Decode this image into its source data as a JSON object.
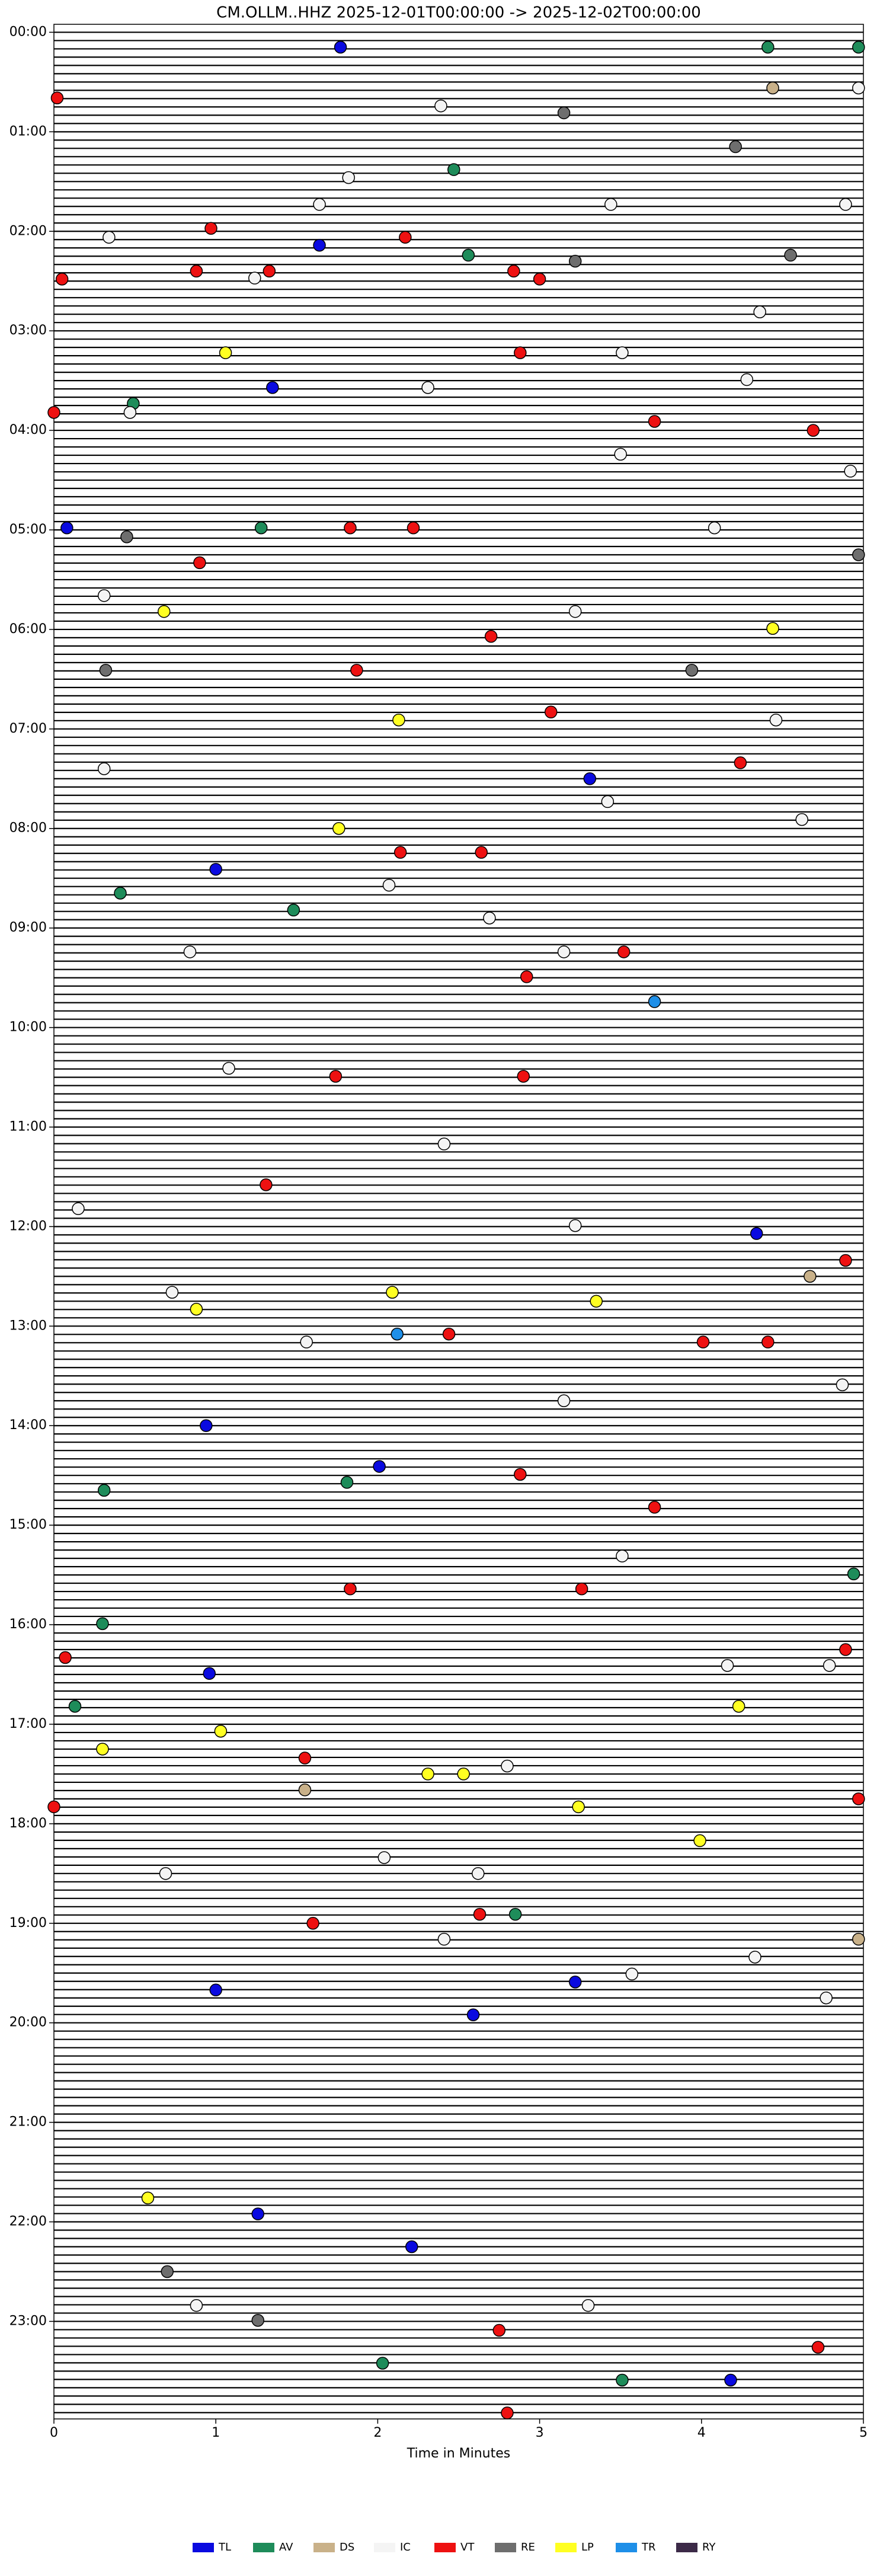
{
  "chart_data": {
    "type": "helicorder",
    "title": "CM.OLLM..HHZ  2025-12-01T00:00:00 -> 2025-12-02T00:00:00",
    "x_label": "Time in Minutes",
    "xlim": [
      0,
      5
    ],
    "xticks": [
      0,
      1,
      2,
      3,
      4,
      5
    ],
    "ylim": [
      -0.08,
      23.98
    ],
    "yaxis_inverted": true,
    "yticks": [
      {
        "value": 0,
        "label": "00:00"
      },
      {
        "value": 1,
        "label": "01:00"
      },
      {
        "value": 2,
        "label": "02:00"
      },
      {
        "value": 3,
        "label": "03:00"
      },
      {
        "value": 4,
        "label": "04:00"
      },
      {
        "value": 5,
        "label": "05:00"
      },
      {
        "value": 6,
        "label": "06:00"
      },
      {
        "value": 7,
        "label": "07:00"
      },
      {
        "value": 8,
        "label": "08:00"
      },
      {
        "value": 9,
        "label": "09:00"
      },
      {
        "value": 10,
        "label": "10:00"
      },
      {
        "value": 11,
        "label": "11:00"
      },
      {
        "value": 12,
        "label": "12:00"
      },
      {
        "value": 13,
        "label": "13:00"
      },
      {
        "value": 14,
        "label": "14:00"
      },
      {
        "value": 15,
        "label": "15:00"
      },
      {
        "value": 16,
        "label": "16:00"
      },
      {
        "value": 17,
        "label": "17:00"
      },
      {
        "value": 18,
        "label": "18:00"
      },
      {
        "value": 19,
        "label": "19:00"
      },
      {
        "value": 20,
        "label": "20:00"
      },
      {
        "value": 21,
        "label": "21:00"
      },
      {
        "value": 22,
        "label": "22:00"
      },
      {
        "value": 23,
        "label": "23:00"
      }
    ],
    "legend": "bottom",
    "series": [
      {
        "name": "TL",
        "color": "#0a0ae0",
        "x": [
          1.77,
          1.64,
          1.35,
          0.08,
          3.31,
          1.0,
          0.94,
          2.01,
          0.96,
          1.0,
          3.22,
          2.59,
          1.26,
          2.21,
          4.18,
          4.34
        ],
        "y": [
          0.15,
          2.14,
          3.57,
          4.98,
          7.5,
          8.41,
          14.0,
          14.41,
          16.49,
          19.67,
          19.59,
          19.92,
          21.92,
          22.25,
          23.59,
          12.07
        ]
      },
      {
        "name": "AV",
        "color": "#1e8c5a",
        "x": [
          4.41,
          4.97,
          2.47,
          2.56,
          0.49,
          1.28,
          0.41,
          1.48,
          0.31,
          1.81,
          4.94,
          0.3,
          0.13,
          2.85,
          2.03,
          3.51
        ],
        "y": [
          0.15,
          0.15,
          1.38,
          2.24,
          3.73,
          4.98,
          8.65,
          8.82,
          14.65,
          14.57,
          15.49,
          15.99,
          16.82,
          18.91,
          23.42,
          23.59
        ]
      },
      {
        "name": "DS",
        "color": "#c9b189",
        "x": [
          4.44,
          4.67,
          1.55,
          4.97
        ],
        "y": [
          0.56,
          12.5,
          17.66,
          19.16
        ]
      },
      {
        "name": "IC",
        "color": "#f4f4f4",
        "x": [
          4.97,
          2.39,
          1.82,
          1.64,
          3.44,
          4.89,
          4.36,
          4.28,
          0.34,
          1.24,
          3.51,
          0.47,
          2.31,
          4.92,
          3.5,
          4.08,
          0.31,
          3.22,
          4.46,
          0.31,
          3.42,
          4.62,
          2.07,
          2.69,
          3.15,
          0.84,
          1.08,
          2.41,
          0.15,
          3.22,
          0.73,
          1.56,
          4.87,
          3.15,
          3.51,
          4.16,
          4.79,
          2.8,
          0.69,
          2.04,
          2.62,
          2.41,
          4.33,
          3.57,
          4.77,
          0.88,
          3.3
        ],
        "y": [
          0.56,
          0.74,
          1.46,
          1.73,
          1.73,
          1.73,
          2.81,
          3.49,
          2.06,
          2.47,
          3.22,
          3.82,
          3.57,
          4.41,
          4.24,
          4.98,
          5.66,
          5.82,
          6.91,
          7.4,
          7.73,
          7.91,
          8.57,
          8.9,
          9.24,
          9.24,
          10.41,
          11.17,
          11.82,
          11.99,
          12.66,
          13.16,
          13.59,
          13.75,
          15.31,
          16.41,
          16.41,
          17.42,
          18.5,
          18.34,
          18.5,
          19.16,
          19.34,
          19.51,
          19.75,
          22.84,
          22.84
        ]
      },
      {
        "name": "VT",
        "color": "#ee1111",
        "x": [
          0.02,
          0.97,
          2.17,
          0.05,
          0.88,
          1.33,
          2.84,
          3.0,
          2.88,
          0,
          3.71,
          4.69,
          0.9,
          2.22,
          1.83,
          2.7,
          1.87,
          3.07,
          4.24,
          2.14,
          2.64,
          3.52,
          2.92,
          2.9,
          1.74,
          1.31,
          4.89,
          2.44,
          4.01,
          4.41,
          2.88,
          3.71,
          1.83,
          3.26,
          0.07,
          4.89,
          1.55,
          0,
          4.97,
          1.6,
          2.63,
          2.75,
          4.72,
          2.8
        ],
        "y": [
          0.66,
          1.97,
          2.06,
          2.48,
          2.4,
          2.4,
          2.4,
          2.48,
          3.22,
          3.82,
          3.91,
          4.0,
          5.33,
          4.98,
          4.98,
          6.07,
          6.41,
          6.83,
          7.34,
          8.24,
          8.24,
          9.24,
          9.49,
          10.49,
          10.49,
          11.58,
          12.34,
          13.08,
          13.16,
          13.16,
          14.49,
          14.82,
          15.64,
          15.64,
          16.33,
          16.25,
          17.34,
          17.83,
          17.75,
          19.0,
          18.91,
          23.09,
          23.26,
          23.92
        ]
      },
      {
        "name": "RE",
        "color": "#6e6e6e",
        "x": [
          3.15,
          4.21,
          3.22,
          4.55,
          0.45,
          4.97,
          0.32,
          3.94,
          0.7,
          1.26
        ],
        "y": [
          0.81,
          1.15,
          2.3,
          2.24,
          5.07,
          5.25,
          6.41,
          6.41,
          22.5,
          22.99
        ]
      },
      {
        "name": "LP",
        "color": "#ffff22",
        "x": [
          1.06,
          0.68,
          4.44,
          2.13,
          1.76,
          0.88,
          2.09,
          3.35,
          4.23,
          1.03,
          0.3,
          2.31,
          2.53,
          3.24,
          3.99,
          0.58
        ],
        "y": [
          3.22,
          5.82,
          5.99,
          6.91,
          8.0,
          12.83,
          12.66,
          12.75,
          16.82,
          17.07,
          17.25,
          17.5,
          17.5,
          17.83,
          18.17,
          21.76
        ]
      },
      {
        "name": "TR",
        "color": "#1e8fe8",
        "x": [
          3.71,
          2.12
        ],
        "y": [
          9.74,
          13.08
        ]
      },
      {
        "name": "RY",
        "color": "#3c2a48",
        "x": [],
        "y": []
      }
    ]
  }
}
